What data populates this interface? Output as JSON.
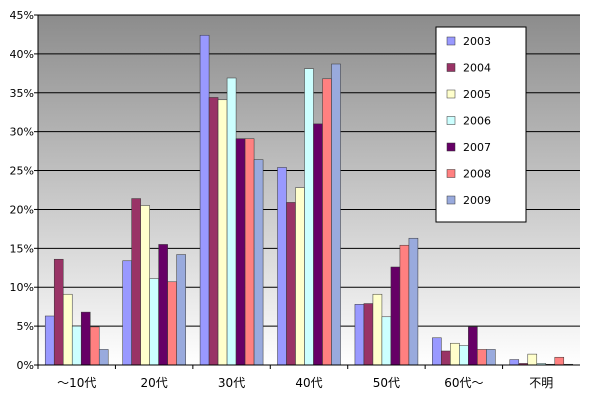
{
  "chart_data": {
    "type": "bar",
    "categories": [
      "～10代",
      "20代",
      "30代",
      "40代",
      "50代",
      "60代～",
      "不明"
    ],
    "series": [
      {
        "name": "2003",
        "color": "#9999ff",
        "values": [
          6.3,
          13.4,
          42.4,
          25.4,
          7.8,
          3.5,
          0.7
        ]
      },
      {
        "name": "2004",
        "color": "#993366",
        "values": [
          13.6,
          21.4,
          34.4,
          20.9,
          7.9,
          1.8,
          0.2
        ]
      },
      {
        "name": "2005",
        "color": "#ffffcc",
        "values": [
          9.1,
          20.5,
          34.1,
          22.8,
          9.1,
          2.8,
          1.4
        ]
      },
      {
        "name": "2006",
        "color": "#ccffff",
        "values": [
          5.0,
          11.1,
          36.9,
          38.1,
          6.2,
          2.5,
          0.2
        ]
      },
      {
        "name": "2007",
        "color": "#660066",
        "values": [
          6.8,
          15.5,
          29.1,
          31.0,
          12.6,
          4.9,
          0.1
        ]
      },
      {
        "name": "2008",
        "color": "#ff8080",
        "values": [
          4.9,
          10.7,
          29.1,
          36.8,
          15.4,
          2.0,
          1.0
        ]
      },
      {
        "name": "2009",
        "color": "#99aadd",
        "values": [
          2.0,
          14.2,
          26.4,
          38.7,
          16.3,
          2.0,
          0.1
        ]
      }
    ],
    "ylim": [
      0,
      45
    ],
    "yticks": [
      "0%",
      "5%",
      "10%",
      "15%",
      "20%",
      "25%",
      "30%",
      "35%",
      "40%",
      "45%"
    ],
    "grid": true,
    "legend_position": "top-right",
    "plot_background": "gradient-gray"
  }
}
